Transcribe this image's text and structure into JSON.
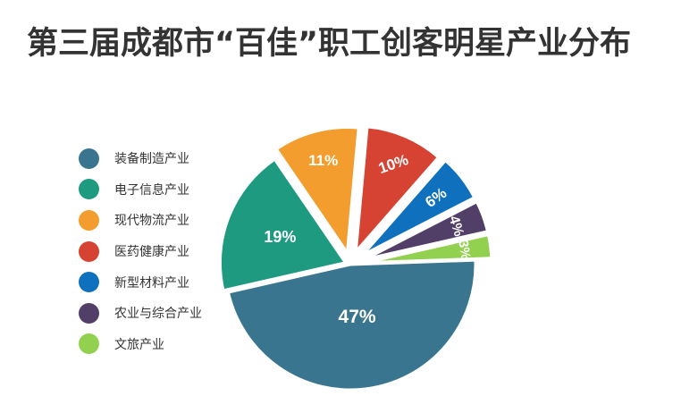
{
  "chart_data": {
    "type": "pie",
    "title": "第三届成都市“百佳”职工创客明星产业分布",
    "legend_position": "left",
    "slices": [
      {
        "label": "装备制造产业",
        "value": 47,
        "display": "47%",
        "color": "#39758f"
      },
      {
        "label": "电子信息产业",
        "value": 19,
        "display": "19%",
        "color": "#1e9a80"
      },
      {
        "label": "现代物流产业",
        "value": 11,
        "display": "11%",
        "color": "#f29d2d"
      },
      {
        "label": "医药健康产业",
        "value": 10,
        "display": "10%",
        "color": "#d64333"
      },
      {
        "label": "新型材料产业",
        "value": 6,
        "display": "6%",
        "color": "#0f71be"
      },
      {
        "label": "农业与综合产业",
        "value": 4,
        "display": "4%",
        "color": "#523f68"
      },
      {
        "label": "文旅产业",
        "value": 3,
        "display": "3%",
        "color": "#92d150"
      }
    ]
  }
}
